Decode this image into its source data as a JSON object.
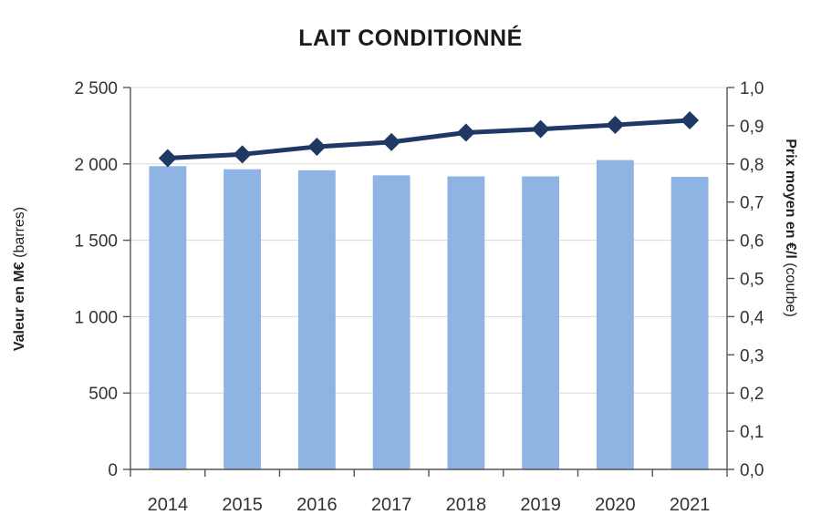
{
  "chart_data": {
    "type": "bar",
    "title": "LAIT CONDITIONNÉ",
    "categories": [
      "2014",
      "2015",
      "2016",
      "2017",
      "2018",
      "2019",
      "2020",
      "2021"
    ],
    "series": [
      {
        "type": "bar",
        "axis": "left",
        "values": [
          1985,
          1965,
          1958,
          1925,
          1918,
          1918,
          2025,
          1915
        ]
      },
      {
        "type": "line",
        "axis": "right",
        "values": [
          0.815,
          0.825,
          0.845,
          0.857,
          0.882,
          0.891,
          0.902,
          0.914
        ]
      }
    ],
    "ylabel_bold": "Valeur en M€",
    "ylabel_suffix": " (barres)",
    "y2label_bold": "Prix moyen en €/l",
    "y2label_suffix": " (courbe)",
    "ylim": [
      0,
      2500
    ],
    "y2lim": [
      0,
      1.0
    ],
    "yticks": [
      "0",
      "500",
      "1 000",
      "1 500",
      "2 000",
      "2 500"
    ],
    "y2ticks": [
      "0,0",
      "0,1",
      "0,2",
      "0,3",
      "0,4",
      "0,5",
      "0,6",
      "0,7",
      "0,8",
      "0,9",
      "1,0"
    ],
    "grid": true,
    "colors": {
      "bar": "#8fb3e2",
      "line": "#1f3864",
      "axis": "#555555",
      "grid": "#d9d9d9"
    }
  }
}
